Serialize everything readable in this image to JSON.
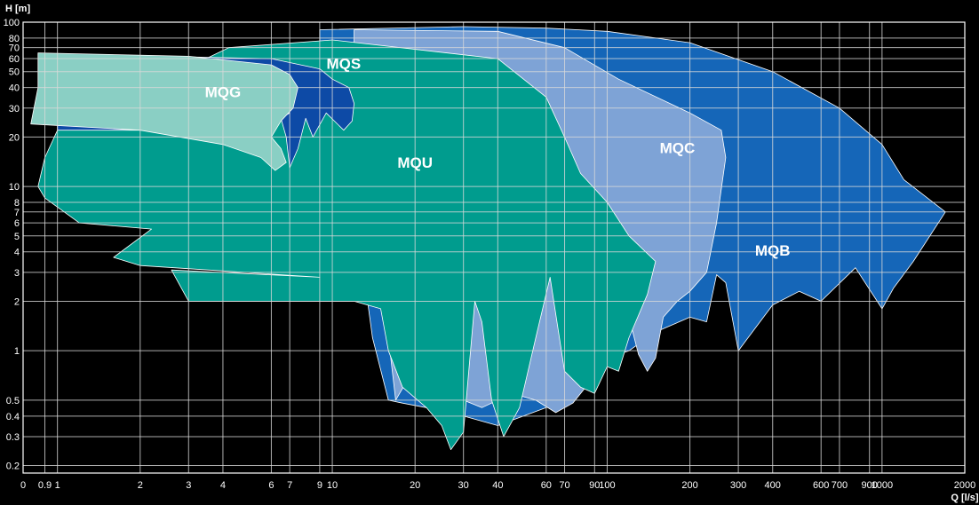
{
  "chart_data": {
    "type": "area",
    "xlabel": "Q [l/s]",
    "ylabel": "H [m]",
    "xscale": "log",
    "yscale": "log",
    "xlim": [
      0.75,
      2000
    ],
    "ylim": [
      0.18,
      100
    ],
    "grid": true,
    "x_ticks": [
      {
        "v": 0.9,
        "label": "0.9"
      },
      {
        "v": 1,
        "label": "1"
      },
      {
        "v": 2,
        "label": "2"
      },
      {
        "v": 3,
        "label": "3"
      },
      {
        "v": 4,
        "label": "4"
      },
      {
        "v": 6,
        "label": "6"
      },
      {
        "v": 7,
        "label": "7"
      },
      {
        "v": 9,
        "label": "9"
      },
      {
        "v": 10,
        "label": "10"
      },
      {
        "v": 20,
        "label": "20"
      },
      {
        "v": 30,
        "label": "30"
      },
      {
        "v": 40,
        "label": "40"
      },
      {
        "v": 60,
        "label": "60"
      },
      {
        "v": 70,
        "label": "70"
      },
      {
        "v": 90,
        "label": "90"
      },
      {
        "v": 100,
        "label": "100"
      },
      {
        "v": 200,
        "label": "200"
      },
      {
        "v": 300,
        "label": "300"
      },
      {
        "v": 400,
        "label": "400"
      },
      {
        "v": 600,
        "label": "600"
      },
      {
        "v": 700,
        "label": "700"
      },
      {
        "v": 900,
        "label": "900"
      },
      {
        "v": 1000,
        "label": "1000"
      },
      {
        "v": 2000,
        "label": "2000"
      }
    ],
    "x_zero_label": "0",
    "y_ticks": [
      {
        "v": 0.2,
        "label": "0.2"
      },
      {
        "v": 0.3,
        "label": "0.3"
      },
      {
        "v": 0.4,
        "label": "0.4"
      },
      {
        "v": 0.5,
        "label": "0.5"
      },
      {
        "v": 1,
        "label": "1"
      },
      {
        "v": 2,
        "label": "2"
      },
      {
        "v": 3,
        "label": "3"
      },
      {
        "v": 4,
        "label": "4"
      },
      {
        "v": 5,
        "label": "5"
      },
      {
        "v": 6,
        "label": "6"
      },
      {
        "v": 7,
        "label": "7"
      },
      {
        "v": 8,
        "label": "8"
      },
      {
        "v": 10,
        "label": "10"
      },
      {
        "v": 20,
        "label": "20"
      },
      {
        "v": 30,
        "label": "30"
      },
      {
        "v": 40,
        "label": "40"
      },
      {
        "v": 50,
        "label": "50"
      },
      {
        "v": 60,
        "label": "60"
      },
      {
        "v": 70,
        "label": "70"
      },
      {
        "v": 80,
        "label": "80"
      },
      {
        "v": 100,
        "label": "100"
      }
    ],
    "series": [
      {
        "name": "MQB",
        "color": "#1566b8",
        "label_at": [
          400,
          3.8
        ],
        "points": [
          [
            9,
            90
          ],
          [
            30,
            94
          ],
          [
            60,
            92
          ],
          [
            100,
            88
          ],
          [
            200,
            75
          ],
          [
            400,
            50
          ],
          [
            700,
            30
          ],
          [
            1000,
            18
          ],
          [
            1200,
            11
          ],
          [
            1700,
            7
          ],
          [
            1300,
            3.5
          ],
          [
            1100,
            2.4
          ],
          [
            1000,
            1.8
          ],
          [
            800,
            3.2
          ],
          [
            600,
            2
          ],
          [
            500,
            2.3
          ],
          [
            400,
            1.9
          ],
          [
            300,
            1.0
          ],
          [
            270,
            2.6
          ],
          [
            250,
            2.9
          ],
          [
            230,
            1.5
          ],
          [
            200,
            1.6
          ],
          [
            150,
            1.3
          ],
          [
            120,
            1.0
          ],
          [
            100,
            0.9
          ],
          [
            80,
            0.6
          ],
          [
            60,
            0.45
          ],
          [
            40,
            0.35
          ],
          [
            30,
            0.4
          ],
          [
            22,
            0.45
          ],
          [
            18,
            0.48
          ],
          [
            16,
            0.5
          ],
          [
            14,
            1.2
          ],
          [
            13,
            3
          ],
          [
            12,
            8
          ],
          [
            10,
            20
          ],
          [
            9,
            60
          ]
        ]
      },
      {
        "name": "MQC",
        "color": "#7ea3d6",
        "label_at": [
          180,
          16
        ],
        "points": [
          [
            12,
            90
          ],
          [
            40,
            88
          ],
          [
            70,
            70
          ],
          [
            110,
            45
          ],
          [
            200,
            28
          ],
          [
            260,
            22
          ],
          [
            270,
            15
          ],
          [
            250,
            6
          ],
          [
            230,
            3
          ],
          [
            200,
            2.3
          ],
          [
            180,
            2.0
          ],
          [
            160,
            1.6
          ],
          [
            150,
            0.9
          ],
          [
            140,
            0.75
          ],
          [
            130,
            0.95
          ],
          [
            120,
            1.6
          ],
          [
            100,
            1.0
          ],
          [
            90,
            0.7
          ],
          [
            75,
            0.48
          ],
          [
            65,
            0.42
          ],
          [
            55,
            0.5
          ],
          [
            45,
            0.55
          ],
          [
            40,
            0.5
          ],
          [
            35,
            0.45
          ],
          [
            30,
            0.5
          ],
          [
            25,
            0.6
          ],
          [
            20,
            0.8
          ],
          [
            17,
            0.5
          ],
          [
            16,
            1.2
          ],
          [
            15,
            3
          ],
          [
            14,
            15
          ],
          [
            12,
            60
          ]
        ]
      },
      {
        "name": "MQU",
        "color": "#009c8e",
        "label_at": [
          20,
          13
        ],
        "points": [
          [
            4.2,
            70
          ],
          [
            10,
            78
          ],
          [
            40,
            60
          ],
          [
            60,
            35
          ],
          [
            70,
            20
          ],
          [
            80,
            12
          ],
          [
            100,
            8
          ],
          [
            120,
            5
          ],
          [
            150,
            3.5
          ],
          [
            140,
            2.2
          ],
          [
            120,
            1.2
          ],
          [
            110,
            0.75
          ],
          [
            100,
            0.8
          ],
          [
            90,
            0.55
          ],
          [
            80,
            0.6
          ],
          [
            70,
            0.75
          ],
          [
            62,
            2.8
          ],
          [
            55,
            1.2
          ],
          [
            48,
            0.45
          ],
          [
            42,
            0.3
          ],
          [
            38,
            0.5
          ],
          [
            35,
            1.5
          ],
          [
            33,
            2.0
          ],
          [
            30,
            0.32
          ],
          [
            27,
            0.25
          ],
          [
            25,
            0.35
          ],
          [
            22,
            0.45
          ],
          [
            18,
            0.6
          ],
          [
            16,
            1.0
          ],
          [
            15,
            1.8
          ],
          [
            12,
            2.0
          ],
          [
            3,
            2.0
          ],
          [
            2.6,
            3.1
          ],
          [
            9,
            2.8
          ],
          [
            2,
            3.3
          ],
          [
            1.6,
            3.7
          ],
          [
            2.2,
            5.5
          ],
          [
            1.2,
            6.0
          ],
          [
            0.9,
            8.5
          ],
          [
            0.85,
            10
          ],
          [
            0.9,
            15
          ],
          [
            1.0,
            22
          ],
          [
            4.2,
            70
          ]
        ]
      },
      {
        "name": "MQS",
        "color": "#0d4aa6",
        "label_at": [
          11,
          52
        ],
        "points": [
          [
            1,
            64
          ],
          [
            6,
            60
          ],
          [
            9,
            52
          ],
          [
            10,
            45
          ],
          [
            11.5,
            40
          ],
          [
            12,
            32
          ],
          [
            11.8,
            25
          ],
          [
            11,
            22
          ],
          [
            9.5,
            28
          ],
          [
            8.5,
            20
          ],
          [
            8,
            26
          ],
          [
            7.5,
            17
          ],
          [
            7,
            13
          ],
          [
            6.8,
            20
          ],
          [
            6.5,
            26
          ],
          [
            7,
            28
          ],
          [
            5,
            22
          ],
          [
            1,
            22
          ]
        ]
      },
      {
        "name": "MQG",
        "color": "#8acfc4",
        "label_at": [
          4,
          35
        ],
        "points": [
          [
            0.85,
            65
          ],
          [
            3,
            62
          ],
          [
            6,
            55
          ],
          [
            7,
            48
          ],
          [
            7.5,
            40
          ],
          [
            7.2,
            30
          ],
          [
            6.5,
            25
          ],
          [
            6,
            20
          ],
          [
            6.5,
            17
          ],
          [
            6.8,
            14
          ],
          [
            6.2,
            12.5
          ],
          [
            5.5,
            15
          ],
          [
            4,
            18
          ],
          [
            2,
            22
          ],
          [
            0.8,
            24
          ],
          [
            0.85,
            40
          ]
        ]
      }
    ]
  }
}
